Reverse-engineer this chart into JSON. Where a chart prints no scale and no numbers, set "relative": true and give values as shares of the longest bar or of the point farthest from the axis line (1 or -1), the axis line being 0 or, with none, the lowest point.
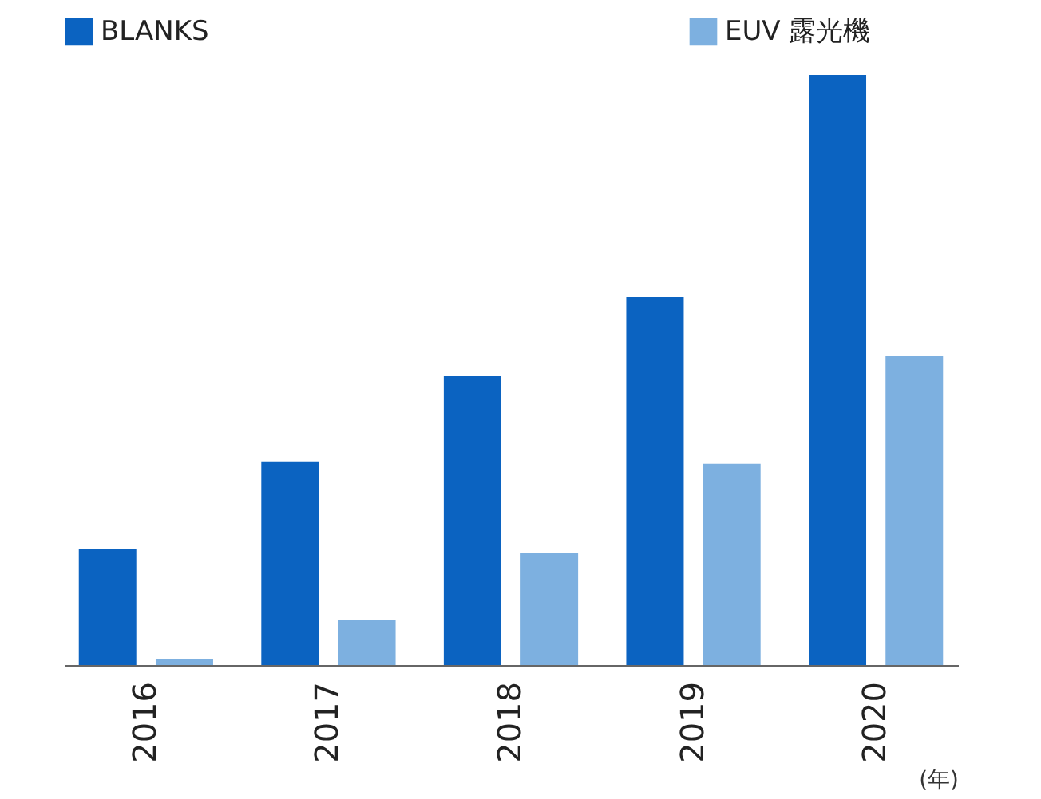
{
  "chart_data": {
    "type": "bar",
    "relative": true,
    "xlabel": "(年)",
    "legend": "top",
    "categories": [
      "2016",
      "2017",
      "2018",
      "2019",
      "2020"
    ],
    "series": [
      {
        "name": "BLANKS",
        "color": "#0b63c1",
        "values": [
          0.197,
          0.345,
          0.49,
          0.624,
          1
        ]
      },
      {
        "name": "EUV 露光機",
        "color": "#7db0e0",
        "values": [
          0.01,
          0.076,
          0.19,
          0.341,
          0.524
        ]
      }
    ]
  }
}
